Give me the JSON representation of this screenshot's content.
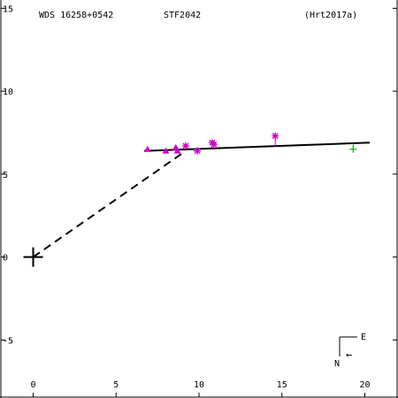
{
  "header": {
    "left": "WDS 16258+0542",
    "center": "STF2042",
    "right": "(Hrt2017a)"
  },
  "compass": {
    "north": "N",
    "east": "E",
    "arrow": "←"
  },
  "colors": {
    "axis": "#000000",
    "orbit": "#000000",
    "observations": "#cc00cc",
    "ephemeris": "#22aa22"
  },
  "chart_data": {
    "type": "scatter",
    "title": "",
    "xlabel": "",
    "ylabel": "",
    "xlim": [
      -2,
      22
    ],
    "ylim": [
      -8.5,
      15.5
    ],
    "x_ticks": [
      0,
      5,
      10,
      15,
      20
    ],
    "y_ticks": [
      15,
      10,
      5,
      0,
      -5
    ],
    "x_tick_labels": [
      "0",
      "5",
      "10",
      "15",
      "20"
    ],
    "y_tick_labels": [
      "15",
      "10",
      "5",
      "0",
      "-5"
    ],
    "primary": {
      "x": 0,
      "y": 0,
      "marker": "plus"
    },
    "fit_line": [
      [
        6.7,
        6.4
      ],
      [
        20.3,
        6.9
      ]
    ],
    "projection_line": [
      [
        0,
        0
      ],
      [
        9.2,
        6.4
      ]
    ],
    "series": [
      {
        "marker": "triangle",
        "color": "#cc00cc",
        "points": [
          [
            6.9,
            6.5
          ],
          [
            8.0,
            6.4
          ],
          [
            8.6,
            6.6
          ],
          [
            8.7,
            6.4
          ]
        ]
      },
      {
        "marker": "asterisk",
        "color": "#cc00cc",
        "points": [
          [
            9.2,
            6.7
          ],
          [
            9.9,
            6.4
          ],
          [
            10.8,
            6.9
          ],
          [
            10.9,
            6.8
          ],
          [
            14.6,
            7.3
          ]
        ]
      },
      {
        "marker": "plus",
        "color": "#22aa22",
        "points": [
          [
            19.3,
            6.5
          ]
        ]
      }
    ]
  }
}
